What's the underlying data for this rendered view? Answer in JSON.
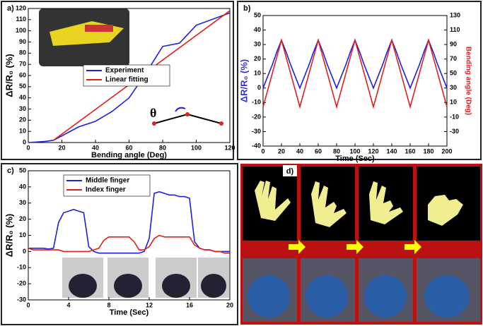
{
  "chart_data": [
    {
      "type": "line",
      "panel_label": "a)",
      "xlabel": "Bending angle (Deg)",
      "ylabel": "ΔR/R₀ (%)",
      "xlim": [
        0,
        120
      ],
      "xticks": [
        0,
        20,
        40,
        60,
        80,
        100,
        120
      ],
      "ylim": [
        0,
        120
      ],
      "yticks": [
        0,
        10,
        20,
        30,
        40,
        50,
        60,
        70,
        80,
        90,
        100,
        110,
        120
      ],
      "legend": "lower right",
      "annotation": "θ",
      "series": [
        {
          "name": "Experiment",
          "color": "#1f1fe0",
          "x": [
            0,
            10,
            15,
            20,
            30,
            40,
            50,
            60,
            70,
            80,
            90,
            100,
            120
          ],
          "values": [
            0,
            1,
            2,
            6,
            14,
            19,
            28,
            40,
            62,
            86,
            89,
            105,
            116
          ]
        },
        {
          "name": "Linear fitting",
          "color": "#e01f1f",
          "x": [
            15,
            120
          ],
          "values": [
            2,
            118
          ]
        }
      ]
    },
    {
      "type": "line",
      "panel_label": "b)",
      "xlabel": "Time (Sec)",
      "ylabel": "ΔR/R₀ (%)",
      "y2label": "Bending angle (Deg)",
      "ylabel_color": "#3333dd",
      "y2label_color": "#dd2222",
      "xlim": [
        0,
        200
      ],
      "xticks": [
        0,
        20,
        40,
        60,
        80,
        100,
        120,
        140,
        160,
        180,
        200
      ],
      "ylim": [
        -40,
        50
      ],
      "yticks": [
        -40,
        -30,
        -20,
        -10,
        0,
        10,
        20,
        30,
        40,
        50
      ],
      "y2lim": [
        -50,
        130
      ],
      "y2ticks": [
        -30,
        -10,
        10,
        30,
        50,
        70,
        90,
        110,
        130
      ],
      "x": [
        0,
        5,
        10,
        15,
        20,
        25,
        30,
        35,
        40,
        45,
        50,
        55,
        60,
        65,
        70,
        75,
        80,
        85,
        90,
        95,
        100,
        105,
        110,
        115,
        120,
        125,
        130,
        135,
        140,
        145,
        150,
        155,
        160,
        165,
        170,
        175,
        180,
        185,
        190,
        195,
        200
      ],
      "series": [
        {
          "color": "#1f1fe0",
          "values": [
            0,
            8,
            16,
            25,
            33,
            25,
            16,
            8,
            0,
            8,
            16,
            25,
            33,
            25,
            16,
            8,
            0,
            8,
            16,
            25,
            33,
            25,
            16,
            8,
            0,
            8,
            16,
            25,
            33,
            25,
            16,
            8,
            0,
            8,
            16,
            25,
            33,
            25,
            16,
            8,
            0
          ]
        },
        {
          "color": "#e01f1f",
          "axis": "y2",
          "values": [
            4,
            27,
            50,
            73,
            96,
            73,
            50,
            27,
            4,
            27,
            50,
            73,
            96,
            73,
            50,
            27,
            4,
            27,
            50,
            73,
            96,
            73,
            50,
            27,
            4,
            27,
            50,
            73,
            96,
            73,
            50,
            27,
            4,
            27,
            50,
            73,
            96,
            73,
            50,
            27,
            4
          ]
        }
      ]
    },
    {
      "type": "line",
      "panel_label": "c)",
      "xlabel": "Time (Sec)",
      "ylabel": "ΔR/R₀ (%)",
      "xlim": [
        0,
        20
      ],
      "xticks": [
        0,
        4,
        8,
        12,
        16,
        20
      ],
      "ylim": [
        -30,
        50
      ],
      "yticks": [
        -30,
        -20,
        -10,
        0,
        10,
        20,
        30,
        40,
        50
      ],
      "legend": "upper left",
      "x": [
        0,
        0.5,
        1,
        1.5,
        2,
        2.5,
        3,
        3.5,
        4,
        4.5,
        5,
        5.5,
        6,
        6.5,
        7,
        7.5,
        8,
        8.5,
        9,
        9.5,
        10,
        10.5,
        11,
        11.5,
        12,
        12.5,
        13,
        13.5,
        14,
        14.5,
        15,
        15.5,
        16,
        16.5,
        17,
        17.5,
        18,
        18.5,
        19,
        19.5,
        20
      ],
      "series": [
        {
          "name": "Middle finger",
          "color": "#1f1fe0",
          "values": [
            2,
            2,
            2,
            2,
            1.5,
            2,
            18,
            24,
            25,
            26,
            25,
            24,
            3,
            0,
            -1,
            -1,
            -1,
            -1,
            -1,
            -1,
            -1,
            -1,
            -1,
            0,
            8,
            36,
            37,
            36,
            35,
            35,
            34,
            34,
            33,
            6,
            2,
            1,
            1,
            0,
            0,
            0,
            0
          ]
        },
        {
          "name": "Index finger",
          "color": "#e01f1f",
          "values": [
            2,
            1,
            1,
            1,
            1,
            1,
            1,
            0,
            0,
            0,
            0,
            0,
            0,
            1,
            2,
            7,
            9,
            9,
            9,
            9,
            9,
            6,
            1,
            1,
            3,
            8,
            10,
            9,
            9,
            9,
            9,
            9,
            9,
            4,
            2,
            1,
            1,
            0,
            0,
            -1,
            -1
          ]
        }
      ]
    },
    {
      "type": "image",
      "panel_label": "d)"
    }
  ]
}
